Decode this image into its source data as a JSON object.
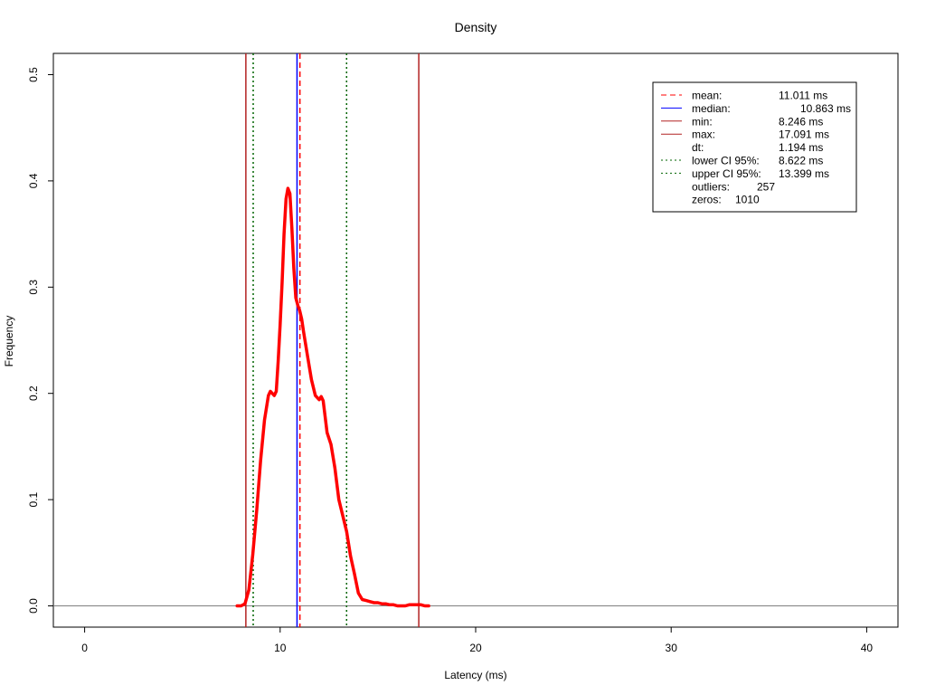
{
  "chart_data": {
    "type": "line",
    "title": "Density",
    "xlabel": "Latency (ms)",
    "ylabel": "Frequency",
    "xlim": [
      -1.6,
      41.6
    ],
    "ylim": [
      -0.02,
      0.52
    ],
    "x_ticks": [
      0,
      10,
      20,
      30,
      40
    ],
    "y_ticks": [
      0.0,
      0.1,
      0.2,
      0.3,
      0.4,
      0.5
    ],
    "x_tick_labels": [
      "0",
      "10",
      "20",
      "30",
      "40"
    ],
    "y_tick_labels": [
      "0.0",
      "0.1",
      "0.2",
      "0.3",
      "0.4",
      "0.5"
    ],
    "grid": false,
    "legend_position": "top-right",
    "colors": {
      "density": "#ff0000",
      "mean": "#ff0000",
      "median": "#0000ff",
      "minmax": "#b22222",
      "ci": "#006400",
      "baseline": "#808080"
    },
    "series": [
      {
        "x": [
          7.8,
          8.0,
          8.2,
          8.4,
          8.6,
          8.8,
          9.0,
          9.2,
          9.4,
          9.5,
          9.6,
          9.7,
          9.8,
          9.9,
          10.0,
          10.1,
          10.2,
          10.3,
          10.4,
          10.5,
          10.6,
          10.7,
          10.8,
          10.9,
          11.0,
          11.1,
          11.2,
          11.4,
          11.6,
          11.8,
          12.0,
          12.1,
          12.2,
          12.4,
          12.6,
          12.8,
          13.0,
          13.2,
          13.4,
          13.6,
          13.8,
          14.0,
          14.2,
          14.4,
          14.6,
          14.8,
          15.0,
          15.2,
          15.4,
          15.6,
          15.8,
          16.0,
          16.2,
          16.4,
          16.6,
          16.8,
          17.0,
          17.2,
          17.4,
          17.6
        ],
        "values": [
          0.0,
          0.0,
          0.002,
          0.015,
          0.048,
          0.09,
          0.137,
          0.175,
          0.198,
          0.202,
          0.2,
          0.198,
          0.202,
          0.23,
          0.265,
          0.305,
          0.35,
          0.383,
          0.393,
          0.388,
          0.355,
          0.318,
          0.29,
          0.283,
          0.278,
          0.27,
          0.258,
          0.235,
          0.213,
          0.198,
          0.194,
          0.197,
          0.193,
          0.163,
          0.152,
          0.13,
          0.1,
          0.085,
          0.07,
          0.047,
          0.03,
          0.012,
          0.006,
          0.005,
          0.004,
          0.003,
          0.003,
          0.002,
          0.002,
          0.001,
          0.001,
          0.0,
          0.0,
          0.0,
          0.001,
          0.001,
          0.001,
          0.001,
          0.0,
          0.0
        ]
      }
    ],
    "vlines": [
      {
        "key": "min",
        "x": 8.246,
        "style": "solid",
        "color": "#b22222"
      },
      {
        "key": "lower-ci",
        "x": 8.622,
        "style": "dotted",
        "color": "#006400"
      },
      {
        "key": "median",
        "x": 10.863,
        "style": "solid",
        "color": "#0000ff"
      },
      {
        "key": "mean",
        "x": 11.011,
        "style": "dashed",
        "color": "#ff0000"
      },
      {
        "key": "upper-ci",
        "x": 13.399,
        "style": "dotted",
        "color": "#006400"
      },
      {
        "key": "max",
        "x": 17.091,
        "style": "solid",
        "color": "#b22222"
      }
    ],
    "baseline_y": 0.0,
    "legend": [
      {
        "key": "mean",
        "label": "mean:",
        "value": "11.011 ms",
        "line": "dashed",
        "color": "#ff0000"
      },
      {
        "key": "median",
        "label": "median:",
        "value": "10.863 ms",
        "line": "solid",
        "color": "#0000ff"
      },
      {
        "key": "min",
        "label": "min:",
        "value": "8.246 ms",
        "line": "solid",
        "color": "#b22222"
      },
      {
        "key": "max",
        "label": "max:",
        "value": "17.091 ms",
        "line": "solid",
        "color": "#b22222"
      },
      {
        "key": "dt",
        "label": "dt:",
        "value": "1.194 ms",
        "line": "none",
        "color": ""
      },
      {
        "key": "lower-ci",
        "label": "lower CI 95%:",
        "value": "8.622 ms",
        "line": "dotted",
        "color": "#006400"
      },
      {
        "key": "upper-ci",
        "label": "upper CI 95%:",
        "value": "13.399 ms",
        "line": "dotted",
        "color": "#006400"
      },
      {
        "key": "outliers",
        "label": "outliers:",
        "value": "257",
        "line": "none",
        "color": ""
      },
      {
        "key": "zeros",
        "label": "zeros:",
        "value": "1010",
        "line": "none",
        "color": ""
      }
    ]
  }
}
